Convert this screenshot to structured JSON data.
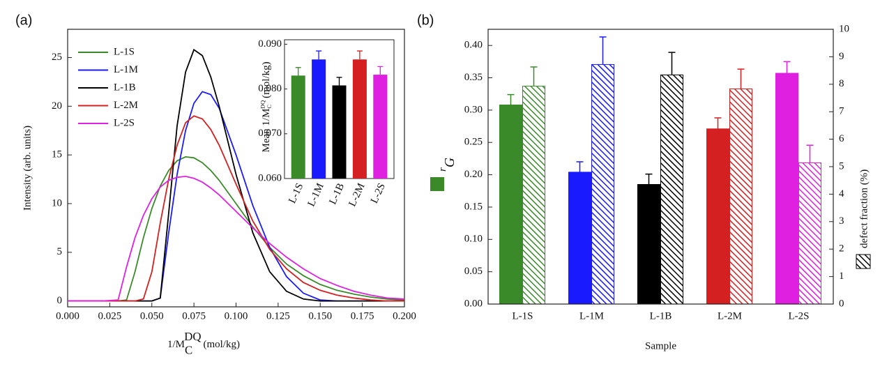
{
  "panels": [
    "(a)",
    "(b)"
  ],
  "chart_data": [
    {
      "type": "line",
      "xlabel": {
        "main": "1/M",
        "sub": "C",
        "sup": "DQ",
        "unit": "(mol/kg)"
      },
      "ylabel": "Intensity (arb. units)",
      "x": [
        0,
        0.02,
        0.03,
        0.035,
        0.04,
        0.045,
        0.05,
        0.055,
        0.06,
        0.065,
        0.07,
        0.075,
        0.08,
        0.085,
        0.09,
        0.1,
        0.11,
        0.12,
        0.13,
        0.14,
        0.15,
        0.16,
        0.17,
        0.18,
        0.19,
        0.2
      ],
      "series": [
        {
          "name": "L-1S",
          "color": "#3a8a2a",
          "values": [
            0,
            0,
            0,
            0.1,
            3,
            6.5,
            9.5,
            11.8,
            13.4,
            14.4,
            14.8,
            14.7,
            14.2,
            13.4,
            12.4,
            10,
            7.6,
            5.5,
            3.8,
            2.6,
            1.7,
            1.1,
            0.7,
            0.4,
            0.2,
            0.1
          ]
        },
        {
          "name": "L-1M",
          "color": "#1a1aff",
          "values": [
            0,
            0,
            0,
            0,
            0,
            0,
            0,
            0.3,
            7,
            13,
            17.5,
            20.3,
            21.5,
            21.2,
            19.8,
            15,
            9.8,
            5.5,
            2.5,
            0.8,
            0.1,
            0,
            0,
            0,
            0,
            0
          ]
        },
        {
          "name": "L-1B",
          "color": "#000000",
          "values": [
            0,
            0,
            0,
            0,
            0,
            0,
            0,
            0.3,
            9,
            18,
            23.5,
            25.8,
            25.2,
            23,
            20,
            13,
            7,
            3,
            1,
            0.2,
            0,
            0,
            0,
            0,
            0,
            0
          ]
        },
        {
          "name": "L-2M",
          "color": "#d42020",
          "values": [
            0,
            0,
            0,
            0,
            0,
            0.2,
            3,
            8,
            12.5,
            16,
            18.3,
            19,
            18.7,
            17.6,
            16,
            12,
            8.2,
            5.3,
            3.3,
            1.9,
            1.1,
            0.6,
            0.3,
            0.1,
            0,
            0
          ]
        },
        {
          "name": "L-2S",
          "color": "#e020e0",
          "values": [
            0,
            0,
            0.1,
            3.5,
            6.5,
            8.8,
            10.5,
            11.7,
            12.4,
            12.7,
            12.8,
            12.6,
            12.2,
            11.6,
            10.9,
            9.2,
            7.5,
            5.9,
            4.5,
            3.3,
            2.3,
            1.6,
            1,
            0.6,
            0.3,
            0.2
          ]
        }
      ],
      "xlim": [
        0,
        0.2
      ],
      "xticks": [
        {
          "value": 0,
          "label": "0.000"
        },
        0.025,
        {
          "value": 0.05,
          "label": "0.050"
        },
        0.075,
        {
          "value": 0.1,
          "label": "0.100"
        },
        0.125,
        {
          "value": 0.15,
          "label": "0.150"
        },
        0.175,
        {
          "value": 0.2,
          "label": "0.200"
        }
      ],
      "ylim": [
        -0.6,
        27.9
      ],
      "yticks": [
        0,
        5,
        10,
        15,
        20,
        25
      ],
      "legend": "upper left"
    },
    {
      "type": "bar",
      "ylabel": {
        "main": "Mean 1/M",
        "sub": "C",
        "sup": "DQ",
        "unit": "(mol/kg)"
      },
      "categories": [
        "L-1S",
        "L-1M",
        "L-1B",
        "L-2M",
        "L-2S"
      ],
      "values": [
        0.083,
        0.0866,
        0.0808,
        0.0866,
        0.0832
      ],
      "errors": [
        0.0018,
        0.0019,
        0.0018,
        0.0019,
        0.0018
      ],
      "colors": [
        "#3a8a2a",
        "#1a1aff",
        "#000000",
        "#d42020",
        "#e020e0"
      ],
      "ylim": [
        0.06,
        0.091
      ],
      "yticks": [
        {
          "value": 0.06,
          "label": "0.060"
        },
        {
          "value": 0.07,
          "label": "0.070"
        },
        {
          "value": 0.08,
          "label": "0.080"
        },
        {
          "value": 0.09,
          "label": "0.090"
        }
      ]
    },
    {
      "type": "grouped_bar",
      "xlabel": "Sample",
      "ylabel": {
        "main": "r",
        "sub": "G"
      },
      "y2label": "defect fraction (%)",
      "categories": [
        "L-1S",
        "L-1M",
        "L-1B",
        "L-2M",
        "L-2S"
      ],
      "colors": [
        "#3a8a2a",
        "#1a1aff",
        "#000000",
        "#d42020",
        "#e020e0"
      ],
      "series": [
        {
          "values": [
            0.308,
            0.204,
            0.185,
            0.271,
            0.357
          ],
          "errors": [
            0.016,
            0.016,
            0.016,
            0.017,
            0.018
          ],
          "hatched": false
        },
        {
          "axis": "y2",
          "values": [
            7.93,
            8.72,
            8.34,
            7.83,
            5.14
          ],
          "errors": [
            0.7,
            1.0,
            0.82,
            0.72,
            0.64
          ],
          "hatched": true
        }
      ],
      "ylim": [
        0,
        0.425
      ],
      "yticks": [
        {
          "value": 0,
          "label": "0.00"
        },
        0.05,
        {
          "value": 0.1,
          "label": "0.10"
        },
        0.15,
        {
          "value": 0.2,
          "label": "0.20"
        },
        0.25,
        {
          "value": 0.3,
          "label": "0.30"
        },
        0.35,
        {
          "value": 0.4,
          "label": "0.40"
        }
      ],
      "y2lim": [
        0,
        10
      ],
      "y2ticks": [
        0,
        1,
        2,
        3,
        4,
        5,
        6,
        7,
        8,
        9,
        10
      ]
    }
  ]
}
